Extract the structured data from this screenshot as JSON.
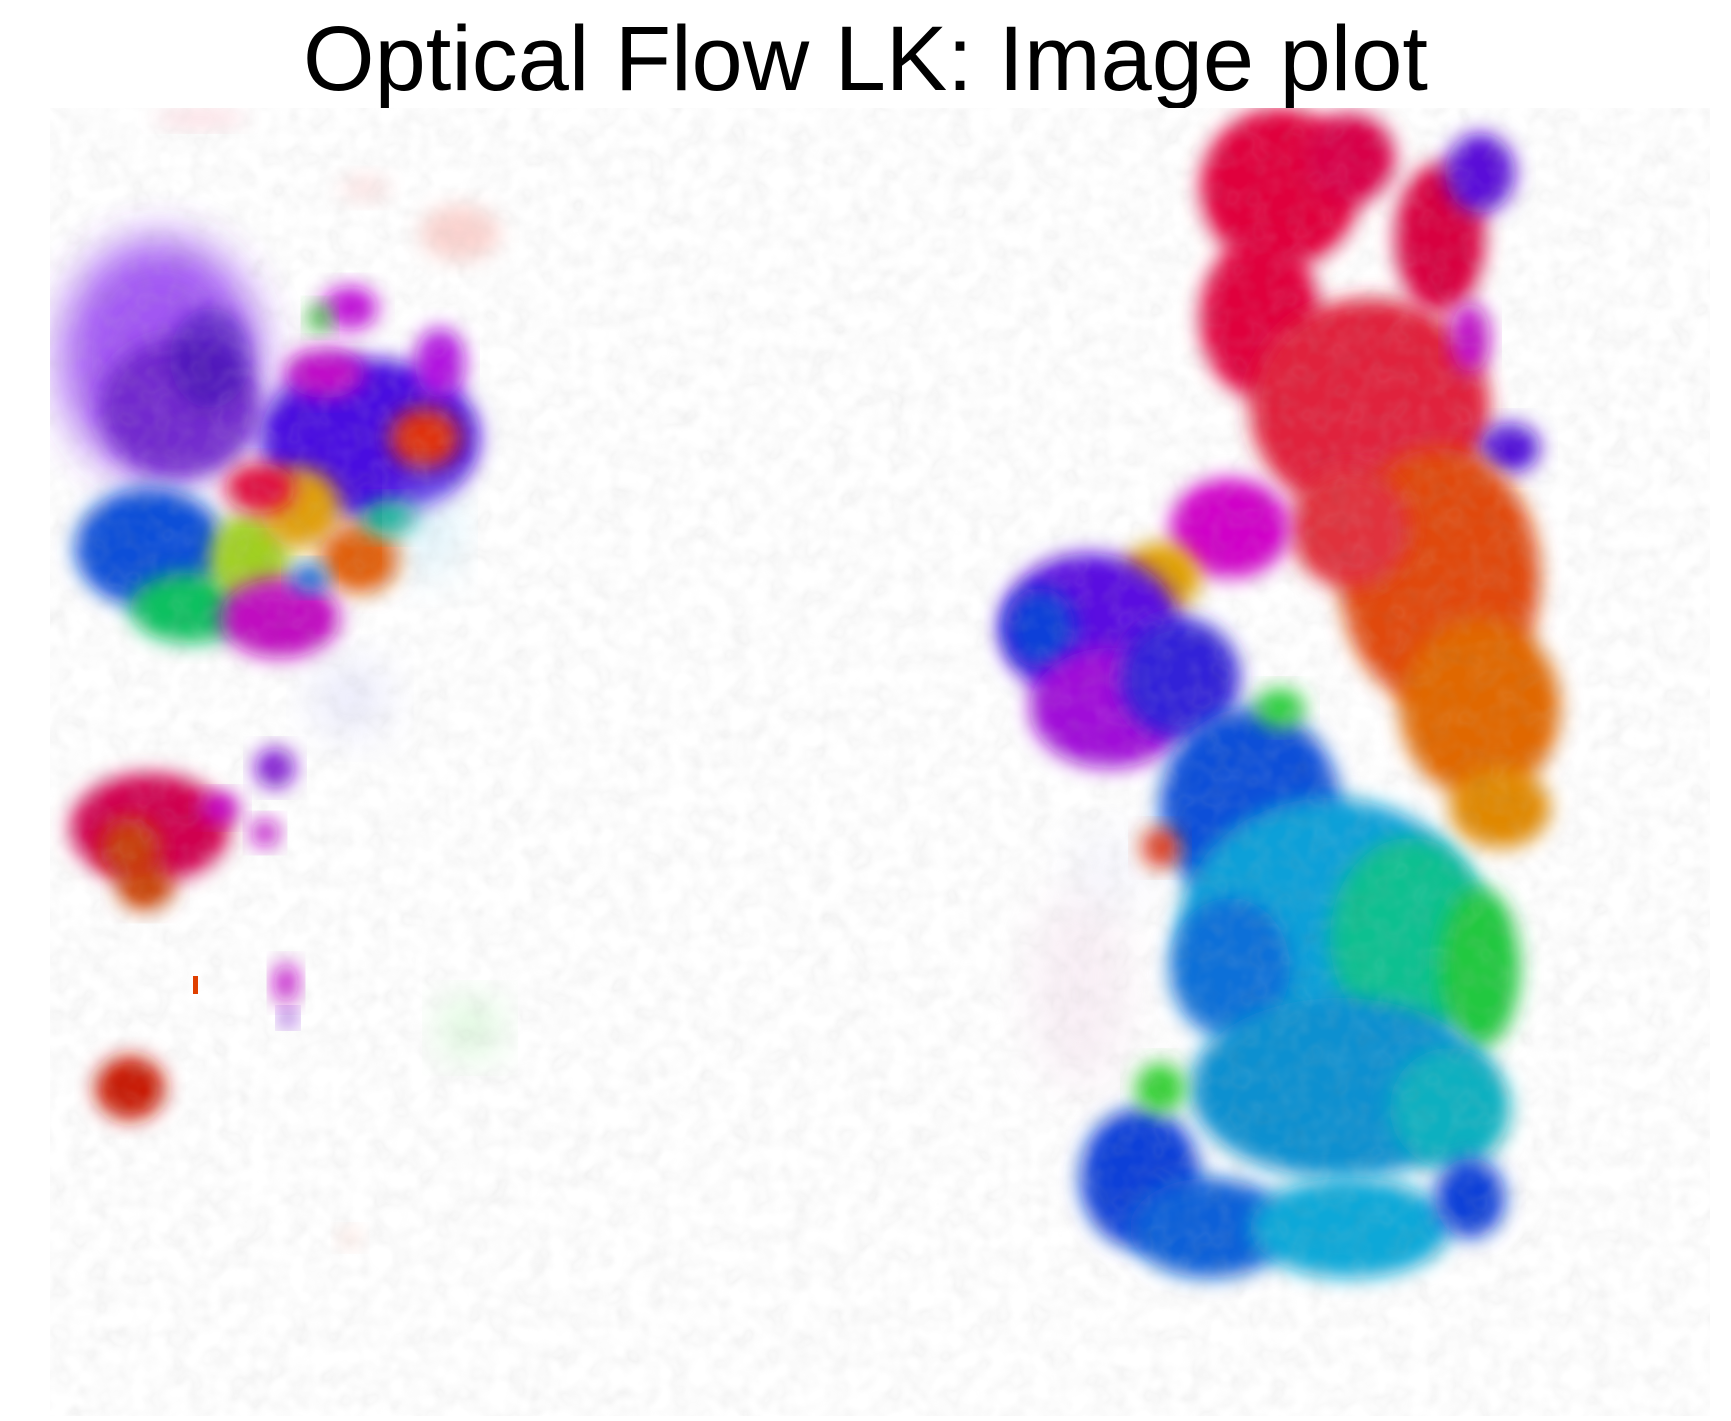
{
  "figure": {
    "title": "Optical Flow LK: Image plot"
  },
  "image": {
    "content": "optical-flow-color-map",
    "background": "#ffffff",
    "palette": {
      "red": "#e0003a",
      "orange": "#e05a00",
      "violet": "#6a00e0",
      "blue": "#1030d8",
      "cyan": "#10a8d8",
      "green": "#20d020",
      "magenta": "#d000c8",
      "crimson": "#d00040"
    }
  }
}
